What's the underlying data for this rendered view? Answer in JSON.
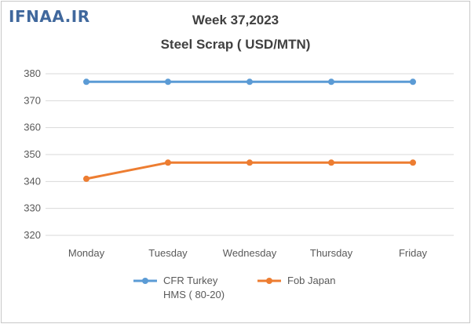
{
  "watermark": "IFNAA.IR",
  "chart_data": {
    "type": "line",
    "title": "Week 37,2023",
    "subtitle": "Steel Scrap ( USD/MTN)",
    "xlabel": "",
    "ylabel": "",
    "categories": [
      "Monday",
      "Tuesday",
      "Wednesday",
      "Thursday",
      "Friday"
    ],
    "ylim": [
      320,
      380
    ],
    "yticks": [
      320,
      330,
      340,
      350,
      360,
      370,
      380
    ],
    "grid": true,
    "legend": "bottom",
    "series": [
      {
        "name": "CFR Turkey HMS ( 80-20)",
        "name_lines": [
          "CFR Turkey",
          "HMS ( 80-20)"
        ],
        "values": [
          377,
          377,
          377,
          377,
          377
        ],
        "color": "#5b9bd5"
      },
      {
        "name": "Fob Japan",
        "name_lines": [
          "Fob Japan"
        ],
        "values": [
          341,
          347,
          347,
          347,
          347
        ],
        "color": "#ed7d31"
      }
    ]
  }
}
